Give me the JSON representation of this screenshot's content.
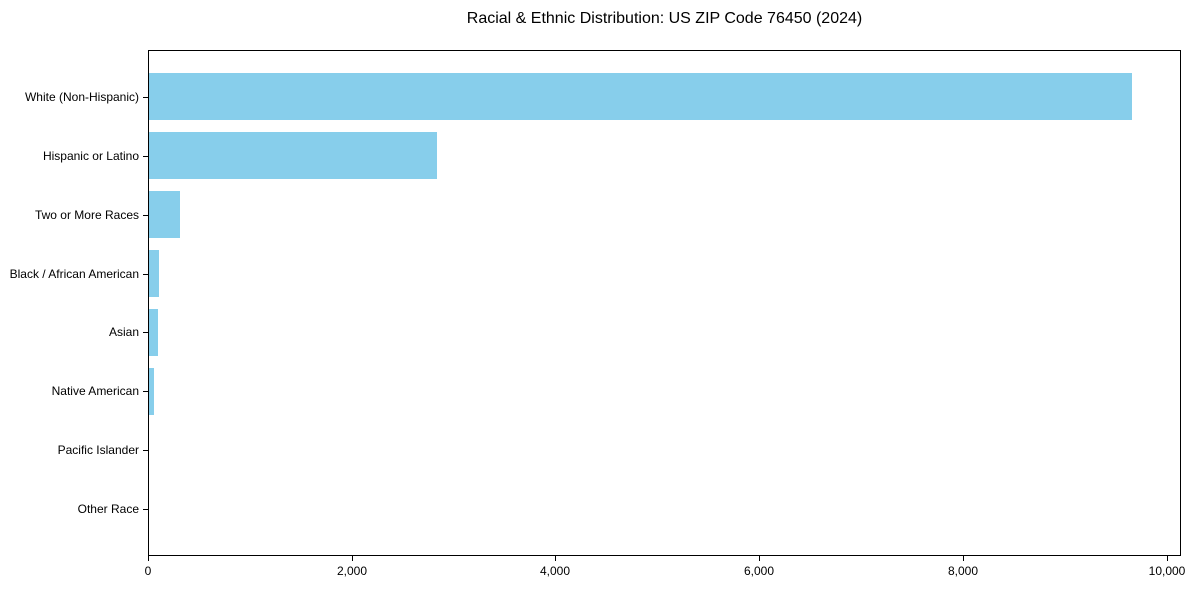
{
  "chart_data": {
    "type": "bar",
    "orientation": "horizontal",
    "title": "Racial & Ethnic Distribution: US ZIP Code 76450 (2024)",
    "categories": [
      "White (Non-Hispanic)",
      "Hispanic or Latino",
      "Two or More Races",
      "Black / African American",
      "Asian",
      "Native American",
      "Pacific Islander",
      "Other Race"
    ],
    "values": [
      9650,
      2830,
      300,
      100,
      85,
      50,
      0,
      0
    ],
    "xlabel": "",
    "ylabel": "",
    "xlim": [
      0,
      10140
    ],
    "x_ticks": [
      0,
      2000,
      4000,
      6000,
      8000,
      10000
    ],
    "x_tick_labels": [
      "0",
      "2,000",
      "4,000",
      "6,000",
      "8,000",
      "10,000"
    ],
    "bar_color": "#87CEEB",
    "axis_color": "#000000",
    "background_color": "#FFFFFF",
    "grid": false,
    "legend": "none"
  }
}
